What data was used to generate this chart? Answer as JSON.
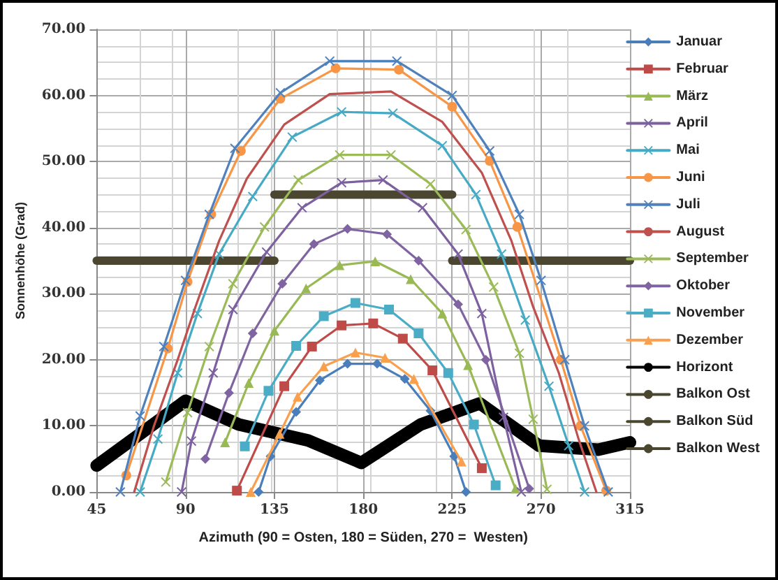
{
  "chart_data": {
    "type": "line",
    "xlabel": "Azimuth (90 = Osten, 180 = Süden, 270 =  Westen)",
    "ylabel": "Sonnenhöhe (Grad)",
    "xlim": [
      45,
      315
    ],
    "xticks": [
      45,
      90,
      135,
      180,
      225,
      270,
      315
    ],
    "ylim": [
      0,
      70
    ],
    "yticks": [
      {
        "value": 0,
        "label": "0.00"
      },
      {
        "value": 10,
        "label": "10.00"
      },
      {
        "value": 20,
        "label": "20.00"
      },
      {
        "value": 30,
        "label": "30.00"
      },
      {
        "value": 40,
        "label": "40.00"
      },
      {
        "value": 50,
        "label": "50.00"
      },
      {
        "value": 60,
        "label": "60.00"
      },
      {
        "value": 70,
        "label": "70.00"
      }
    ],
    "grid": true,
    "legend": "right",
    "line_style": "solid",
    "series": [
      {
        "name": "Januar",
        "color": "#4a7ebb",
        "marker": "diamond",
        "x": [
          127,
          133,
          146,
          158,
          172,
          187,
          201,
          214,
          226,
          232
        ],
        "values": [
          0,
          5.4,
          12.1,
          16.9,
          19.4,
          19.4,
          17.1,
          12.3,
          5.4,
          0
        ]
      },
      {
        "name": "Februar",
        "color": "#be4b48",
        "marker": "square",
        "x": [
          116,
          140,
          154,
          169,
          185,
          200,
          215,
          240
        ],
        "values": [
          0.2,
          16,
          22,
          25.2,
          25.5,
          23.2,
          18.4,
          3.6
        ]
      },
      {
        "name": "März",
        "color": "#98b954",
        "marker": "triangle",
        "x": [
          110,
          122,
          135,
          151,
          168,
          186,
          204,
          220,
          233,
          257
        ],
        "values": [
          7.5,
          16.5,
          24.4,
          30.8,
          34.3,
          34.9,
          32.2,
          27,
          19.2,
          0.5
        ]
      },
      {
        "name": "April",
        "color": "#7d60a0",
        "marker": "cross",
        "x": [
          88,
          93,
          104,
          114,
          131,
          149,
          169,
          190,
          210,
          228,
          240,
          251,
          260
        ],
        "values": [
          0,
          7.7,
          18,
          27.6,
          36.3,
          43,
          46.8,
          47.2,
          43,
          36,
          27,
          11.3,
          0
        ]
      },
      {
        "name": "Mai",
        "color": "#46aac5",
        "marker": "cross",
        "x": [
          67,
          76,
          86,
          96,
          107,
          124,
          144,
          169,
          195,
          220,
          237,
          250,
          262,
          274,
          284,
          292
        ],
        "values": [
          0,
          8,
          18,
          27,
          36,
          44.7,
          53.7,
          57.5,
          57.3,
          52.4,
          45,
          36,
          26,
          16,
          7,
          0
        ]
      },
      {
        "name": "Juni",
        "color": "#f79646",
        "marker": "circle",
        "x": [
          60,
          81,
          91,
          103,
          118,
          138,
          166,
          198,
          225,
          244,
          258,
          280,
          290,
          303
        ],
        "values": [
          2.5,
          21.7,
          31.8,
          42,
          51.6,
          59.5,
          64.1,
          63.9,
          58.3,
          50.1,
          40.1,
          20,
          10,
          0.2
        ]
      },
      {
        "name": "Juli",
        "color": "#4f81bd",
        "marker": "cross",
        "x": [
          57,
          67,
          79,
          90,
          102,
          115,
          138,
          163,
          197,
          225,
          244,
          259,
          270,
          282,
          292,
          304
        ],
        "values": [
          0,
          11.5,
          22,
          32,
          42,
          52,
          60.4,
          65.2,
          65.2,
          60,
          51.6,
          42,
          32,
          20,
          10,
          0
        ]
      },
      {
        "name": "August",
        "color": "#c0504d",
        "marker": "none",
        "x": [
          64,
          74,
          86,
          95,
          107,
          121,
          140,
          163,
          194,
          220,
          240,
          255,
          266,
          279,
          289,
          298
        ],
        "values": [
          0,
          10,
          20,
          28,
          38,
          47.4,
          55.6,
          60.2,
          60.6,
          56,
          48.3,
          38,
          28,
          18,
          8,
          0
        ]
      },
      {
        "name": "September",
        "color": "#9bbb59",
        "marker": "cross",
        "x": [
          80,
          91,
          102,
          114,
          130,
          147,
          168,
          194,
          214,
          232,
          246,
          259,
          266,
          273
        ],
        "values": [
          1.5,
          12,
          22,
          31.5,
          40.1,
          47.2,
          51,
          51,
          46.6,
          39.7,
          31,
          21,
          11,
          0.4
        ]
      },
      {
        "name": "Oktober",
        "color": "#8064a2",
        "marker": "diamond",
        "x": [
          100,
          112,
          124,
          139,
          155,
          172,
          192,
          208,
          228,
          242,
          264
        ],
        "values": [
          5,
          15,
          24,
          31.5,
          37.5,
          39.8,
          39,
          35,
          28.4,
          20,
          0.5
        ]
      },
      {
        "name": "November",
        "color": "#4bacc6",
        "marker": "square",
        "x": [
          120,
          132,
          146,
          160,
          176,
          193,
          208,
          223,
          236,
          247
        ],
        "values": [
          6.9,
          15.3,
          22.1,
          26.6,
          28.6,
          27.6,
          24,
          18,
          10.2,
          1
        ]
      },
      {
        "name": "Dezember",
        "color": "#f9a04e",
        "marker": "triangle",
        "x": [
          123,
          137.6,
          146.7,
          160,
          176,
          191,
          205.6,
          229.7
        ],
        "values": [
          0,
          8.8,
          14.4,
          19,
          21.1,
          20.3,
          17.1,
          4.6
        ]
      },
      {
        "name": "Horizont",
        "color": "#000000",
        "marker": "none",
        "x": [
          45,
          90,
          117,
          152,
          179,
          209,
          239,
          269,
          299,
          315
        ],
        "values": [
          4,
          13.8,
          10.2,
          7.8,
          4.4,
          10.2,
          13.4,
          7,
          6.4,
          7.5
        ]
      },
      {
        "name": "Balkon Ost",
        "color": "#4b4630",
        "marker": "none",
        "x": [
          45,
          135
        ],
        "values": [
          35,
          35
        ]
      },
      {
        "name": "Balkon Süd",
        "color": "#4b4630",
        "marker": "none",
        "x": [
          135,
          225
        ],
        "values": [
          45,
          45
        ]
      },
      {
        "name": "Balkon West",
        "color": "#4b4630",
        "marker": "none",
        "x": [
          225,
          315
        ],
        "values": [
          35,
          35
        ]
      }
    ]
  }
}
